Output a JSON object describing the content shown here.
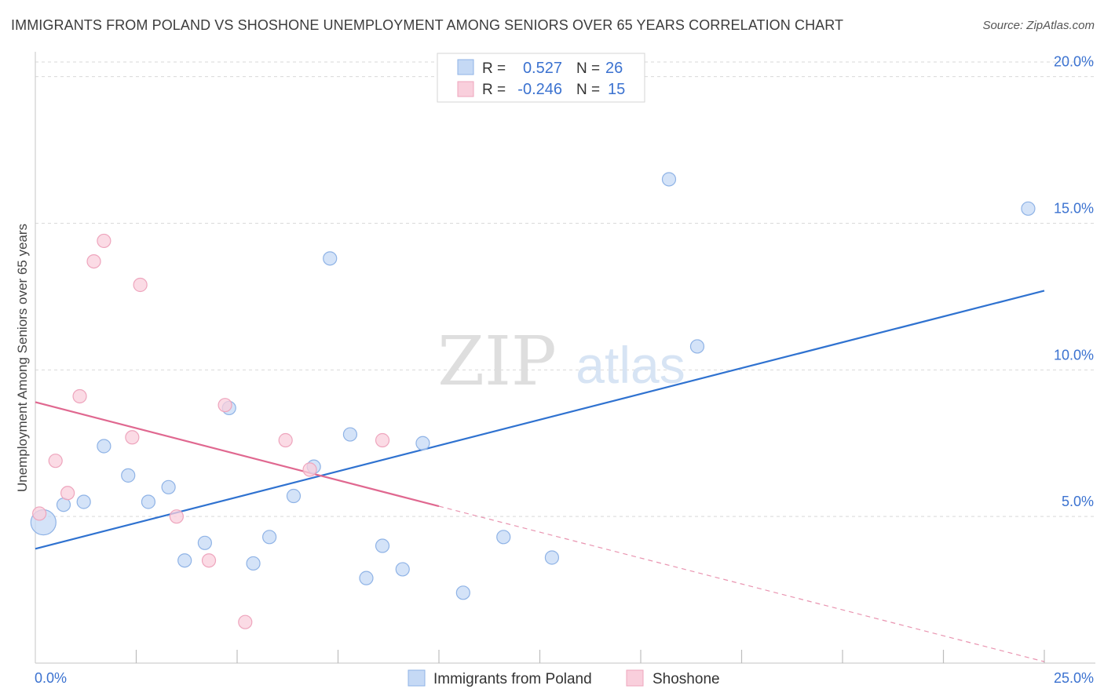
{
  "title": "IMMIGRANTS FROM POLAND VS SHOSHONE UNEMPLOYMENT AMONG SENIORS OVER 65 YEARS CORRELATION CHART",
  "source": "Source: ZipAtlas.com",
  "watermark": {
    "zip": "ZIP",
    "atlas": "atlas"
  },
  "colors": {
    "blue_fill": "#c5d9f5",
    "blue_stroke": "#8fb3e6",
    "blue_line": "#2f72d0",
    "pink_fill": "#f9cfdc",
    "pink_stroke": "#eea5bd",
    "pink_line": "#e06890",
    "value_text": "#3b72d0",
    "grid": "#d9d9d9"
  },
  "legend": {
    "rows": [
      {
        "r_label": "R =",
        "r_value": "0.527",
        "n_label": "N =",
        "n_value": "26"
      },
      {
        "r_label": "R =",
        "r_value": "-0.246",
        "n_label": "N =",
        "n_value": "15"
      }
    ]
  },
  "chart_data": {
    "type": "scatter",
    "xlabel": "",
    "ylabel": "Unemployment Among Seniors over 65 years",
    "xlim": [
      0,
      25
    ],
    "ylim": [
      0,
      20.5
    ],
    "x_tick_labels": [
      "0.0%",
      "25.0%"
    ],
    "y_ticks": [
      5,
      10,
      15,
      20
    ],
    "y_tick_labels": [
      "5.0%",
      "10.0%",
      "15.0%",
      "20.0%"
    ],
    "series": [
      {
        "name": "Immigrants from Poland",
        "points": [
          {
            "x": 0.2,
            "y": 4.8,
            "big": true
          },
          {
            "x": 0.7,
            "y": 5.4
          },
          {
            "x": 1.2,
            "y": 5.5
          },
          {
            "x": 1.7,
            "y": 7.4
          },
          {
            "x": 2.3,
            "y": 6.4
          },
          {
            "x": 2.8,
            "y": 5.5
          },
          {
            "x": 3.3,
            "y": 6.0
          },
          {
            "x": 3.7,
            "y": 3.5
          },
          {
            "x": 4.2,
            "y": 4.1
          },
          {
            "x": 4.8,
            "y": 8.7
          },
          {
            "x": 5.4,
            "y": 3.4
          },
          {
            "x": 5.8,
            "y": 4.3
          },
          {
            "x": 6.4,
            "y": 5.7
          },
          {
            "x": 6.9,
            "y": 6.7
          },
          {
            "x": 7.3,
            "y": 13.8
          },
          {
            "x": 7.8,
            "y": 7.8
          },
          {
            "x": 8.2,
            "y": 2.9
          },
          {
            "x": 8.6,
            "y": 4.0
          },
          {
            "x": 9.1,
            "y": 3.2
          },
          {
            "x": 9.6,
            "y": 7.5
          },
          {
            "x": 10.6,
            "y": 2.4
          },
          {
            "x": 11.6,
            "y": 4.3
          },
          {
            "x": 12.8,
            "y": 3.6
          },
          {
            "x": 15.7,
            "y": 16.5
          },
          {
            "x": 16.4,
            "y": 10.8
          },
          {
            "x": 24.6,
            "y": 15.5
          }
        ],
        "trend": {
          "x0": 0,
          "y0": 3.9,
          "x1": 25,
          "y1": 12.7
        }
      },
      {
        "name": "Shoshone",
        "points": [
          {
            "x": 0.1,
            "y": 5.1
          },
          {
            "x": 0.5,
            "y": 6.9
          },
          {
            "x": 0.8,
            "y": 5.8
          },
          {
            "x": 1.1,
            "y": 9.1
          },
          {
            "x": 1.45,
            "y": 13.7
          },
          {
            "x": 1.7,
            "y": 14.4
          },
          {
            "x": 2.4,
            "y": 7.7
          },
          {
            "x": 2.6,
            "y": 12.9
          },
          {
            "x": 3.5,
            "y": 5.0
          },
          {
            "x": 4.3,
            "y": 3.5
          },
          {
            "x": 4.7,
            "y": 8.8
          },
          {
            "x": 5.2,
            "y": 1.4
          },
          {
            "x": 6.2,
            "y": 7.6
          },
          {
            "x": 6.8,
            "y": 6.6
          },
          {
            "x": 8.6,
            "y": 7.6
          }
        ],
        "trend": {
          "x0": 0,
          "y0": 8.9,
          "x1": 10,
          "y1": 5.35,
          "dash_to_x": 25,
          "dash_to_y": 0.05
        }
      }
    ]
  }
}
